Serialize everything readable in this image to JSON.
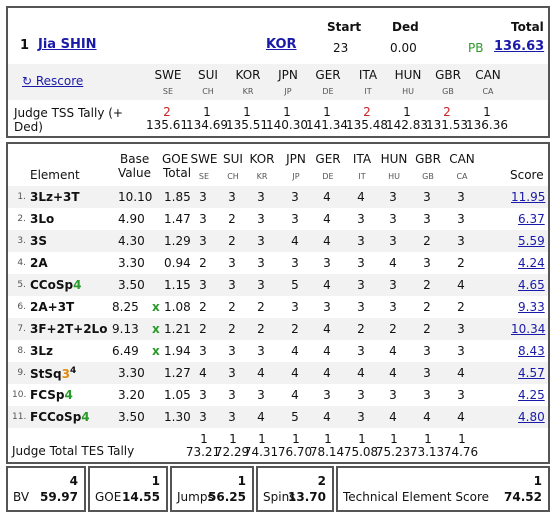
{
  "skater": {
    "rank": "1",
    "name": "Jia SHIN",
    "nation": "KOR",
    "start_label": "Start",
    "start": "23",
    "ded_label": "Ded",
    "ded": "0.00",
    "total_label": "Total",
    "pb": "PB",
    "total": "136.63"
  },
  "rescore_label": "↻ Rescore",
  "judges": [
    {
      "code": "SWE",
      "sub": "SE"
    },
    {
      "code": "SUI",
      "sub": "CH"
    },
    {
      "code": "KOR",
      "sub": "KR"
    },
    {
      "code": "JPN",
      "sub": "JP"
    },
    {
      "code": "GER",
      "sub": "DE"
    },
    {
      "code": "ITA",
      "sub": "IT"
    },
    {
      "code": "HUN",
      "sub": "HU"
    },
    {
      "code": "GBR",
      "sub": "GB"
    },
    {
      "code": "CAN",
      "sub": "CA"
    }
  ],
  "tss_tally": {
    "label": "Judge TSS Tally (+ Ded)",
    "ranks": [
      "2",
      "1",
      "1",
      "1",
      "1",
      "2",
      "1",
      "2",
      "1"
    ],
    "values": [
      "135.61",
      "134.69",
      "135.51",
      "140.30",
      "141.34",
      "135.48",
      "142.83",
      "131.53",
      "136.36"
    ],
    "red": [
      true,
      false,
      false,
      false,
      false,
      true,
      false,
      true,
      false
    ]
  },
  "table_headers": {
    "element": "Element",
    "base_value_line1": "Base",
    "base_value_line2": "Value",
    "goe_line1": "GOE",
    "goe_line2": "Total",
    "score": "Score"
  },
  "elements": [
    {
      "idx": "1.",
      "name": "3Lz+3T",
      "bv": "10.10",
      "x": "",
      "goe": "1.85",
      "marks": [
        "3",
        "3",
        "3",
        "3",
        "4",
        "4",
        "3",
        "3",
        "3"
      ],
      "score": "11.95"
    },
    {
      "idx": "2.",
      "name": "3Lo",
      "bv": "4.90",
      "x": "",
      "goe": "1.47",
      "marks": [
        "3",
        "2",
        "3",
        "3",
        "4",
        "3",
        "3",
        "3",
        "3"
      ],
      "score": "6.37"
    },
    {
      "idx": "3.",
      "name": "3S",
      "bv": "4.30",
      "x": "",
      "goe": "1.29",
      "marks": [
        "3",
        "2",
        "3",
        "4",
        "4",
        "3",
        "3",
        "2",
        "3"
      ],
      "score": "5.59"
    },
    {
      "idx": "4.",
      "name": "2A",
      "bv": "3.30",
      "x": "",
      "goe": "0.94",
      "marks": [
        "2",
        "3",
        "3",
        "3",
        "3",
        "3",
        "4",
        "3",
        "2"
      ],
      "score": "4.24"
    },
    {
      "idx": "5.",
      "name": "CCoSp",
      "suffix": "4",
      "suffix_color": "green",
      "bv": "3.50",
      "x": "",
      "goe": "1.15",
      "marks": [
        "3",
        "3",
        "3",
        "5",
        "4",
        "3",
        "3",
        "2",
        "4"
      ],
      "score": "4.65"
    },
    {
      "idx": "6.",
      "name": "2A+3T",
      "bv": "8.25",
      "x": "x",
      "goe": "1.08",
      "marks": [
        "2",
        "2",
        "2",
        "3",
        "3",
        "3",
        "3",
        "2",
        "2"
      ],
      "score": "9.33"
    },
    {
      "idx": "7.",
      "name": "3F+2T+2Lo",
      "bv": "9.13",
      "x": "x",
      "goe": "1.21",
      "marks": [
        "2",
        "2",
        "2",
        "2",
        "4",
        "2",
        "2",
        "2",
        "3"
      ],
      "score": "10.34"
    },
    {
      "idx": "8.",
      "name": "3Lz",
      "bv": "6.49",
      "x": "x",
      "goe": "1.94",
      "marks": [
        "3",
        "3",
        "3",
        "4",
        "4",
        "3",
        "4",
        "3",
        "3"
      ],
      "score": "8.43"
    },
    {
      "idx": "9.",
      "name": "StSq",
      "suffix": "3",
      "suffix_color": "orange",
      "sup": "4",
      "bv": "3.30",
      "x": "",
      "goe": "1.27",
      "marks": [
        "4",
        "3",
        "4",
        "4",
        "4",
        "4",
        "4",
        "3",
        "4"
      ],
      "score": "4.57"
    },
    {
      "idx": "10.",
      "name": "FCSp",
      "suffix": "4",
      "suffix_color": "green",
      "bv": "3.20",
      "x": "",
      "goe": "1.05",
      "marks": [
        "3",
        "3",
        "3",
        "4",
        "3",
        "3",
        "3",
        "3",
        "3"
      ],
      "score": "4.25"
    },
    {
      "idx": "11.",
      "name": "FCCoSp",
      "suffix": "4",
      "suffix_color": "green",
      "bv": "3.50",
      "x": "",
      "goe": "1.30",
      "marks": [
        "3",
        "3",
        "4",
        "5",
        "4",
        "3",
        "4",
        "4",
        "4"
      ],
      "score": "4.80"
    }
  ],
  "tes_tally": {
    "label": "Judge Total TES Tally",
    "ranks": [
      "1",
      "1",
      "1",
      "1",
      "1",
      "1",
      "1",
      "1",
      "1"
    ],
    "values": [
      "73.21",
      "72.29",
      "74.31",
      "76.70",
      "78.14",
      "75.08",
      "75.23",
      "73.13",
      "74.76"
    ]
  },
  "summary": {
    "bv": {
      "rank": "4",
      "label": "BV",
      "value": "59.97"
    },
    "goe": {
      "rank": "1",
      "label": "GOE",
      "value": "14.55"
    },
    "jumps": {
      "rank": "1",
      "label": "Jumps",
      "value": "56.25"
    },
    "spins": {
      "rank": "2",
      "label": "Spins",
      "value": "13.70"
    },
    "tes": {
      "rank": "1",
      "label": "Technical Element Score",
      "value": "74.52"
    }
  }
}
